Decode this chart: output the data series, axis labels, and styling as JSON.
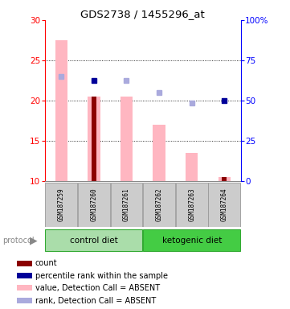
{
  "title": "GDS2738 / 1455296_at",
  "samples": [
    "GSM187259",
    "GSM187260",
    "GSM187261",
    "GSM187262",
    "GSM187263",
    "GSM187264"
  ],
  "ylim_left": [
    10,
    30
  ],
  "ylim_right": [
    0,
    100
  ],
  "yticks_left": [
    10,
    15,
    20,
    25,
    30
  ],
  "yticks_right": [
    0,
    25,
    50,
    75,
    100
  ],
  "yticklabels_right": [
    "0",
    "25",
    "50",
    "75",
    "100%"
  ],
  "value_bars": [
    27.5,
    20.5,
    20.5,
    17.0,
    13.5,
    10.5
  ],
  "count_bars": [
    null,
    20.5,
    null,
    null,
    null,
    10.5
  ],
  "percentile_dots": [
    null,
    22.5,
    null,
    null,
    null,
    20.0
  ],
  "rank_dots": [
    23.0,
    null,
    22.5,
    21.0,
    19.7,
    null
  ],
  "value_bar_color": "#FFB6C1",
  "count_bar_color": "#8B0000",
  "percentile_dot_color": "#000099",
  "rank_dot_color": "#AAAADD",
  "ctrl_color": "#AADDAA",
  "keto_color": "#44CC44",
  "group_border_color": "#33AA33",
  "sample_box_color": "#CCCCCC",
  "sample_box_border": "#999999",
  "protocol_label": "protocol",
  "legend_items": [
    {
      "label": "count",
      "color": "#8B0000"
    },
    {
      "label": "percentile rank within the sample",
      "color": "#000099"
    },
    {
      "label": "value, Detection Call = ABSENT",
      "color": "#FFB6C1"
    },
    {
      "label": "rank, Detection Call = ABSENT",
      "color": "#AAAADD"
    }
  ]
}
